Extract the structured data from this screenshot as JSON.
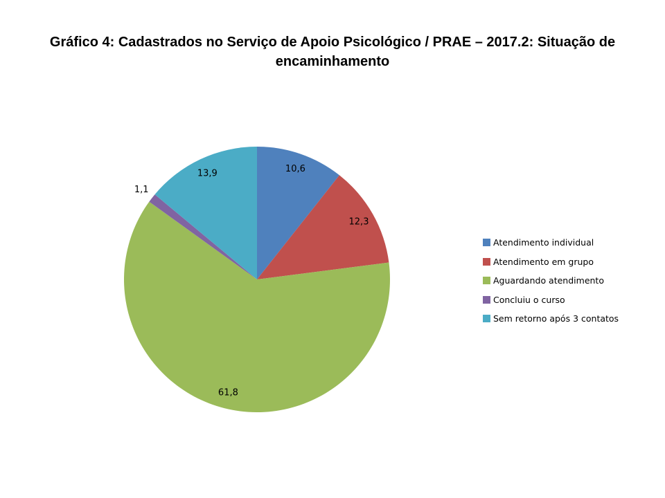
{
  "title": {
    "line1": "Gráfico 4: Cadastrados no Serviço de Apoio Psicológico / PRAE – 2017.2: Situação de",
    "line2": "encaminhamento"
  },
  "chart_data": {
    "type": "pie",
    "title": "Gráfico 4: Cadastrados no Serviço de Apoio Psicológico / PRAE – 2017.2: Situação de encaminhamento",
    "legend_position": "right",
    "start_angle_deg": 0,
    "direction": "clockwise",
    "value_format": "comma-decimal-percent",
    "slices": [
      {
        "label": "Atendimento individual",
        "value": 10.6,
        "display": "10,6",
        "color": "#4F81BD"
      },
      {
        "label": "Atendimento em grupo",
        "value": 12.3,
        "display": "12,3",
        "color": "#C0504D"
      },
      {
        "label": "Aguardando atendimento",
        "value": 61.8,
        "display": "61,8",
        "color": "#9BBB59"
      },
      {
        "label": "Concluiu o curso",
        "value": 1.1,
        "display": "1,1",
        "color": "#8064A2"
      },
      {
        "label": "Sem retorno após 3 contatos",
        "value": 13.9,
        "display": "13,9",
        "color": "#4BACC6"
      }
    ]
  }
}
